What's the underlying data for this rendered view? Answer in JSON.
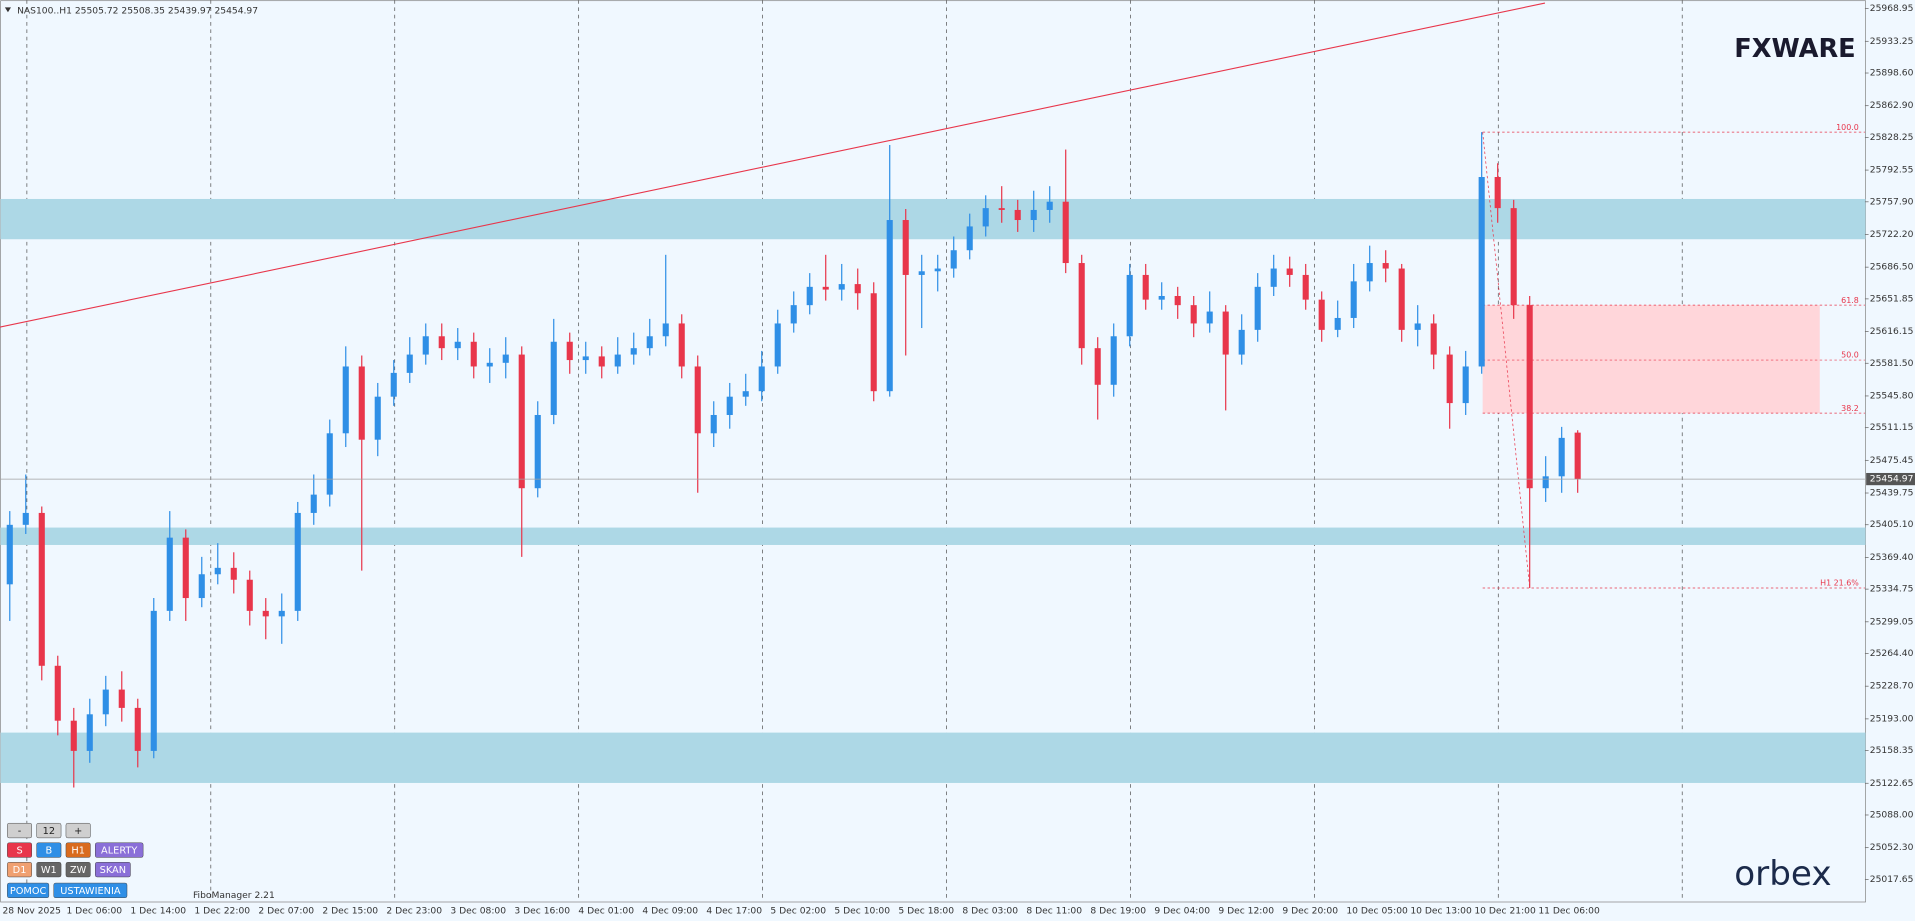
{
  "chart_data": {
    "type": "candlestick",
    "title": "NAS100..H1",
    "categories": [
      "28 Nov 2025",
      null,
      null,
      null,
      "1 Dec 06:00",
      null,
      null,
      null,
      "1 Dec 14:00",
      null,
      null,
      null,
      "1 Dec 22:00",
      null,
      null,
      null,
      "2 Dec 07:00",
      null,
      null,
      null,
      "2 Dec 15:00",
      null,
      null,
      null,
      "2 Dec 23:00",
      null,
      null,
      null,
      "3 Dec 08:00",
      null,
      null,
      null,
      "3 Dec 16:00",
      null,
      null,
      null,
      "4 Dec 01:00",
      null,
      null,
      null,
      "4 Dec 09:00",
      null,
      null,
      null,
      "4 Dec 17:00",
      null,
      null,
      null,
      "5 Dec 02:00",
      null,
      null,
      null,
      "5 Dec 10:00",
      null,
      null,
      null,
      "5 Dec 18:00",
      null,
      null,
      null,
      "8 Dec 03:00",
      null,
      null,
      null,
      "8 Dec 11:00",
      null,
      null,
      null,
      "8 Dec 19:00",
      null,
      null,
      null,
      "9 Dec 04:00",
      null,
      null,
      null,
      "9 Dec 12:00",
      null,
      null,
      null,
      "9 Dec 20:00",
      null,
      null,
      null,
      "10 Dec 05:00",
      null,
      null,
      null,
      "10 Dec 13:00",
      null,
      null,
      null,
      "10 Dec 21:00",
      null,
      null,
      null,
      "11 Dec 06:00",
      null,
      null
    ],
    "open": [
      25340,
      25405,
      25418,
      25251,
      25191,
      25158,
      25198,
      25225,
      25205,
      25158,
      25311,
      25391,
      25325,
      25351,
      25358,
      25345,
      25311,
      25305,
      25311,
      25418,
      25438,
      25505,
      25578,
      25498,
      25545,
      25571,
      25591,
      25611,
      25598,
      25605,
      25578,
      25582,
      25591,
      25445,
      25525,
      25605,
      25585,
      25589,
      25578,
      25591,
      25598,
      25611,
      25625,
      25578,
      25505,
      25525,
      25545,
      25551,
      25578,
      25625,
      25645,
      25665,
      25662,
      25668,
      25658,
      25551,
      25738,
      25678,
      25682,
      25685,
      25705,
      25731,
      25751,
      25749,
      25738,
      25749,
      25758,
      25691,
      25598,
      25558,
      25611,
      25678,
      25651,
      25655,
      25645,
      25625,
      25638,
      25591,
      25618,
      25665,
      25685,
      25678,
      25651,
      25618,
      25631,
      25671,
      25691,
      25685,
      25618,
      25625,
      25591,
      25538,
      25578,
      25785,
      25751,
      25645,
      25445,
      25458,
      25505.72
    ],
    "high": [
      25420,
      25460,
      25425,
      25262,
      25205,
      25215,
      25240,
      25245,
      25215,
      25325,
      25420,
      25400,
      25370,
      25385,
      25375,
      25355,
      25325,
      25330,
      25430,
      25460,
      25520,
      25600,
      25590,
      25560,
      25585,
      25610,
      25625,
      25625,
      25620,
      25615,
      25598,
      25610,
      25600,
      25540,
      25630,
      25615,
      25605,
      25600,
      25610,
      25615,
      25630,
      25700,
      25635,
      25590,
      25540,
      25560,
      25570,
      25595,
      25640,
      25660,
      25680,
      25700,
      25690,
      25685,
      25670,
      25820,
      25750,
      25700,
      25700,
      25720,
      25745,
      25765,
      25775,
      25760,
      25770,
      25775,
      25815,
      25700,
      25610,
      25625,
      25690,
      25690,
      25670,
      25665,
      25655,
      25660,
      25645,
      25635,
      25680,
      25700,
      25698,
      25690,
      25660,
      25650,
      25690,
      25710,
      25705,
      25690,
      25645,
      25635,
      25600,
      25595,
      25834,
      25800,
      25760,
      25655,
      25480,
      25512,
      25508.35
    ],
    "low": [
      25300,
      25395,
      25235,
      25175,
      25118,
      25145,
      25185,
      25190,
      25140,
      25150,
      25300,
      25300,
      25315,
      25340,
      25330,
      25295,
      25280,
      25275,
      25300,
      25405,
      25425,
      25490,
      25355,
      25480,
      25535,
      25560,
      25580,
      25585,
      25585,
      25565,
      25560,
      25565,
      25370,
      25435,
      25515,
      25570,
      25570,
      25565,
      25570,
      25580,
      25590,
      25600,
      25565,
      25440,
      25490,
      25510,
      25535,
      25540,
      25570,
      25615,
      25635,
      25650,
      25650,
      25640,
      25540,
      25545,
      25590,
      25620,
      25660,
      25675,
      25695,
      25720,
      25735,
      25725,
      25725,
      25735,
      25680,
      25580,
      25520,
      25545,
      25600,
      25640,
      25640,
      25630,
      25610,
      25615,
      25530,
      25580,
      25605,
      25655,
      25665,
      25640,
      25605,
      25610,
      25620,
      25660,
      25670,
      25605,
      25600,
      25575,
      25510,
      25525,
      25570,
      25735,
      25630,
      25336,
      25430,
      25440,
      25439.97
    ],
    "close": [
      25405,
      25418,
      25251,
      25191,
      25158,
      25198,
      25225,
      25205,
      25158,
      25311,
      25391,
      25325,
      25351,
      25358,
      25345,
      25311,
      25305,
      25311,
      25418,
      25438,
      25505,
      25578,
      25498,
      25545,
      25571,
      25591,
      25611,
      25598,
      25605,
      25578,
      25582,
      25591,
      25445,
      25525,
      25605,
      25585,
      25589,
      25578,
      25591,
      25598,
      25611,
      25625,
      25578,
      25505,
      25525,
      25545,
      25551,
      25578,
      25625,
      25645,
      25665,
      25662,
      25668,
      25658,
      25551,
      25738,
      25678,
      25682,
      25685,
      25705,
      25731,
      25751,
      25749,
      25738,
      25749,
      25758,
      25691,
      25598,
      25558,
      25611,
      25678,
      25651,
      25655,
      25645,
      25625,
      25638,
      25591,
      25618,
      25665,
      25685,
      25678,
      25651,
      25618,
      25631,
      25671,
      25691,
      25685,
      25618,
      25625,
      25591,
      25538,
      25578,
      25785,
      25751,
      25645,
      25445,
      25458,
      25500,
      25454.97
    ],
    "up_color": "#2f8fe6",
    "down_color": "#e8364b",
    "ylim": [
      24993.6,
      25978.3
    ],
    "yticks": [
      25968.95,
      25933.25,
      {
        "value": 25898.6,
        "label": "25898.60"
      },
      {
        "value": 25862.9,
        "label": "25862.90"
      },
      25828.25,
      25792.55,
      {
        "value": 25757.9,
        "label": "25757.90"
      },
      {
        "value": 25722.2,
        "label": "25722.20"
      },
      {
        "value": 25686.5,
        "label": "25686.50"
      },
      25651.85,
      25616.15,
      {
        "value": 25581.5,
        "label": "25581.50"
      },
      {
        "value": 25545.8,
        "label": "25545.80"
      },
      25511.15,
      25475.45,
      25439.75,
      {
        "value": 25405.1,
        "label": "25405.10"
      },
      {
        "value": 25369.4,
        "label": "25369.40"
      },
      25334.75,
      25299.05,
      {
        "value": 25264.4,
        "label": "25264.40"
      },
      {
        "value": 25228.7,
        "label": "25228.70"
      },
      {
        "value": 25193,
        "label": "25193.00"
      },
      25158.35,
      25122.65,
      {
        "value": 25088,
        "label": "25088.00"
      },
      {
        "value": 25052.3,
        "label": "25052.30"
      },
      25017.65
    ],
    "zones": [
      {
        "from": 25717,
        "to": 25761
      },
      {
        "from": 25383,
        "to": 25402
      },
      {
        "from": 25123,
        "to": 25178
      }
    ],
    "zone_color": "#add8e6",
    "trendline": [
      25621,
      25975
    ],
    "trend_color": "#e8364b",
    "fib_color": "#e8364b",
    "fib_levels": [
      {
        "label": "100.0",
        "value": 25834
      },
      {
        "label": "61.8",
        "value": 25645
      },
      {
        "label": "50.0",
        "value": 25585
      },
      {
        "label": "38.2",
        "value": 25527
      },
      {
        "label": "H1 21.6%",
        "value": 25336
      }
    ]
  },
  "indicator": "FiboManager 2.21",
  "logo": "FXWARE",
  "broker": "orbex",
  "panel": [
    [
      {
        "text": "-",
        "color": "#cfcfcf"
      },
      {
        "text": "12",
        "color": "#cfcfcf"
      },
      {
        "text": "+",
        "color": "#cfcfcf"
      }
    ],
    [
      {
        "text": "S",
        "color": "#e8364b"
      },
      {
        "text": "B",
        "color": "#2f8fe6"
      },
      {
        "text": "H1",
        "color": "#d96b1e"
      },
      {
        "text": "ALERTY",
        "color": "#8a6fd8"
      }
    ],
    [
      {
        "text": "D1",
        "color": "#f0a070"
      },
      {
        "text": "W1",
        "color": "#666666"
      },
      {
        "text": "ZW",
        "color": "#666666"
      },
      {
        "text": "SKAN",
        "color": "#8a6fd8"
      }
    ],
    [
      {
        "text": "POMOC",
        "color": "#2f8fe6"
      },
      {
        "text": "USTAWIENIA",
        "color": "#2f8fe6"
      }
    ]
  ]
}
